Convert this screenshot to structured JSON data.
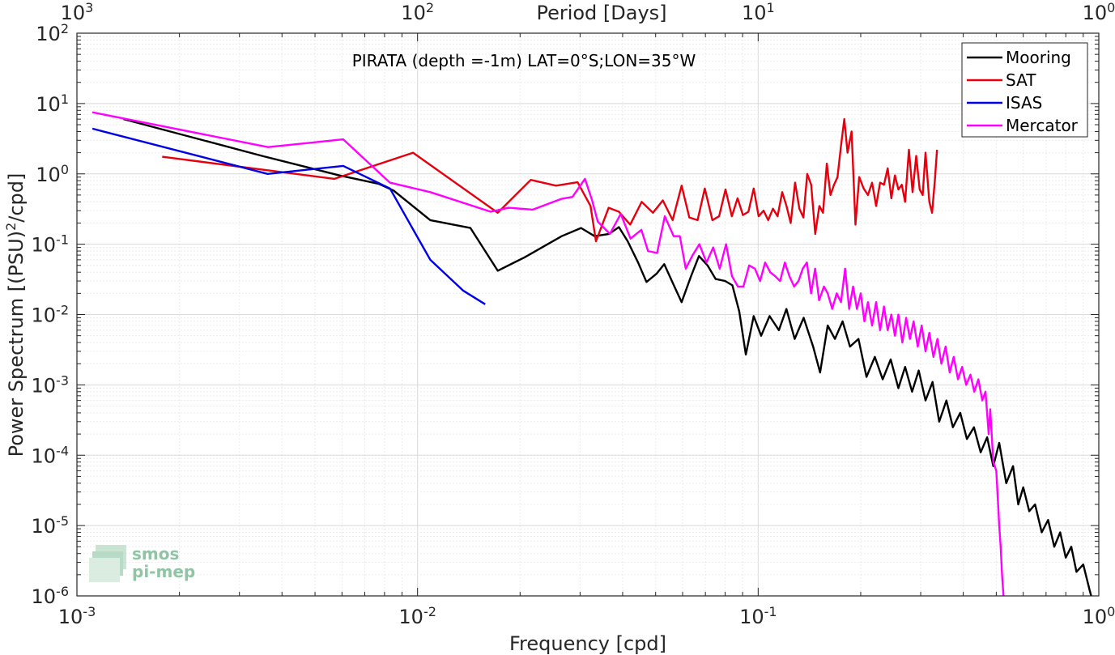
{
  "chart_data": {
    "type": "line",
    "title": "PIRATA (depth =-1m) LAT=0°S;LON=35°W",
    "xlabel": "Frequency [cpd]",
    "ylabel_main": "Power Spectrum [(PSU)",
    "ylabel_sup": "2",
    "ylabel_tail": "/cpd]",
    "top_axis_label": "Period [Days]",
    "xscale": "log",
    "yscale": "log",
    "xlim": [
      0.001,
      1
    ],
    "ylim": [
      1e-06,
      100
    ],
    "grid": true,
    "legend_position": "top-right",
    "x_ticks": [
      {
        "base": "10",
        "exp": "-3",
        "value": 0.001
      },
      {
        "base": "10",
        "exp": "-2",
        "value": 0.01
      },
      {
        "base": "10",
        "exp": "-1",
        "value": 0.1
      },
      {
        "base": "10",
        "exp": "0",
        "value": 1
      }
    ],
    "top_ticks": [
      {
        "base": "10",
        "exp": "3",
        "at": 0.001
      },
      {
        "base": "10",
        "exp": "2",
        "at": 0.01
      },
      {
        "base": "10",
        "exp": "1",
        "at": 0.1
      },
      {
        "base": "10",
        "exp": "0",
        "at": 1
      }
    ],
    "y_ticks": [
      {
        "base": "10",
        "exp": "2",
        "value": 100
      },
      {
        "base": "10",
        "exp": "1",
        "value": 10
      },
      {
        "base": "10",
        "exp": "0",
        "value": 1
      },
      {
        "base": "10",
        "exp": "-1",
        "value": 0.1
      },
      {
        "base": "10",
        "exp": "-2",
        "value": 0.01
      },
      {
        "base": "10",
        "exp": "-3",
        "value": 0.001
      },
      {
        "base": "10",
        "exp": "-4",
        "value": 0.0001
      },
      {
        "base": "10",
        "exp": "-5",
        "value": 1e-05
      },
      {
        "base": "10",
        "exp": "-6",
        "value": 1e-06
      }
    ],
    "series": [
      {
        "name": "Mooring",
        "color": "#000000",
        "points": [
          [
            0.00137,
            6.0
          ],
          [
            0.0035,
            1.8
          ],
          [
            0.0059,
            0.95
          ],
          [
            0.0077,
            0.72
          ],
          [
            0.0085,
            0.58
          ],
          [
            0.0109,
            0.22
          ],
          [
            0.0143,
            0.17
          ],
          [
            0.0172,
            0.042
          ],
          [
            0.0206,
            0.065
          ],
          [
            0.0265,
            0.13
          ],
          [
            0.0302,
            0.17
          ],
          [
            0.0331,
            0.13
          ],
          [
            0.0365,
            0.14
          ],
          [
            0.039,
            0.175
          ],
          [
            0.0414,
            0.11
          ],
          [
            0.0444,
            0.055
          ],
          [
            0.047,
            0.029
          ],
          [
            0.0503,
            0.038
          ],
          [
            0.053,
            0.052
          ],
          [
            0.057,
            0.024
          ],
          [
            0.0596,
            0.015
          ],
          [
            0.0635,
            0.035
          ],
          [
            0.067,
            0.068
          ],
          [
            0.071,
            0.05
          ],
          [
            0.075,
            0.032
          ],
          [
            0.08,
            0.03
          ],
          [
            0.084,
            0.026
          ],
          [
            0.088,
            0.011
          ],
          [
            0.092,
            0.0027
          ],
          [
            0.097,
            0.0095
          ],
          [
            0.102,
            0.005
          ],
          [
            0.108,
            0.0095
          ],
          [
            0.115,
            0.006
          ],
          [
            0.121,
            0.012
          ],
          [
            0.128,
            0.0045
          ],
          [
            0.136,
            0.009
          ],
          [
            0.145,
            0.0035
          ],
          [
            0.152,
            0.0015
          ],
          [
            0.16,
            0.007
          ],
          [
            0.168,
            0.0045
          ],
          [
            0.177,
            0.008
          ],
          [
            0.186,
            0.0035
          ],
          [
            0.197,
            0.0045
          ],
          [
            0.208,
            0.0013
          ],
          [
            0.22,
            0.0025
          ],
          [
            0.232,
            0.0012
          ],
          [
            0.245,
            0.0023
          ],
          [
            0.258,
            0.0009
          ],
          [
            0.27,
            0.0018
          ],
          [
            0.283,
            0.0008
          ],
          [
            0.296,
            0.0016
          ],
          [
            0.31,
            0.0006
          ],
          [
            0.325,
            0.0011
          ],
          [
            0.34,
            0.0003
          ],
          [
            0.357,
            0.0006
          ],
          [
            0.373,
            0.00025
          ],
          [
            0.392,
            0.0004
          ],
          [
            0.41,
            0.00017
          ],
          [
            0.43,
            0.00025
          ],
          [
            0.45,
            0.00011
          ],
          [
            0.47,
            0.00018
          ],
          [
            0.49,
            7e-05
          ],
          [
            0.51,
            0.00015
          ],
          [
            0.535,
            4e-05
          ],
          [
            0.56,
            7e-05
          ],
          [
            0.58,
            2e-05
          ],
          [
            0.6,
            3.5e-05
          ],
          [
            0.625,
            1.6e-05
          ],
          [
            0.65,
            2e-05
          ],
          [
            0.68,
            8e-06
          ],
          [
            0.71,
            1.2e-05
          ],
          [
            0.74,
            5e-06
          ],
          [
            0.77,
            8e-06
          ],
          [
            0.8,
            3.5e-06
          ],
          [
            0.83,
            5e-06
          ],
          [
            0.86,
            2.2e-06
          ],
          [
            0.9,
            2.8e-06
          ],
          [
            0.94,
            1.2e-06
          ],
          [
            0.95,
            1e-06
          ]
        ]
      },
      {
        "name": "SAT",
        "color": "#e6000e",
        "points": [
          [
            0.00178,
            1.75
          ],
          [
            0.0057,
            0.85
          ],
          [
            0.0097,
            2.0
          ],
          [
            0.0172,
            0.28
          ],
          [
            0.0215,
            0.82
          ],
          [
            0.0255,
            0.68
          ],
          [
            0.0295,
            0.76
          ],
          [
            0.0322,
            0.35
          ],
          [
            0.0334,
            0.11
          ],
          [
            0.0364,
            0.33
          ],
          [
            0.039,
            0.29
          ],
          [
            0.0421,
            0.19
          ],
          [
            0.0455,
            0.4
          ],
          [
            0.0491,
            0.28
          ],
          [
            0.0525,
            0.42
          ],
          [
            0.0561,
            0.22
          ],
          [
            0.0596,
            0.68
          ],
          [
            0.0628,
            0.24
          ],
          [
            0.0664,
            0.22
          ],
          [
            0.0697,
            0.62
          ],
          [
            0.0734,
            0.22
          ],
          [
            0.0768,
            0.25
          ],
          [
            0.0802,
            0.6
          ],
          [
            0.0837,
            0.25
          ],
          [
            0.087,
            0.45
          ],
          [
            0.0902,
            0.26
          ],
          [
            0.0936,
            0.29
          ],
          [
            0.097,
            0.62
          ],
          [
            0.1003,
            0.25
          ],
          [
            0.1037,
            0.3
          ],
          [
            0.107,
            0.22
          ],
          [
            0.1105,
            0.32
          ],
          [
            0.114,
            0.25
          ],
          [
            0.1176,
            0.55
          ],
          [
            0.1211,
            0.35
          ],
          [
            0.1246,
            0.2
          ],
          [
            0.1283,
            0.75
          ],
          [
            0.1321,
            0.32
          ],
          [
            0.1358,
            0.24
          ],
          [
            0.1393,
            1.0
          ],
          [
            0.1431,
            0.7
          ],
          [
            0.1471,
            0.14
          ],
          [
            0.1512,
            0.35
          ],
          [
            0.155,
            0.28
          ],
          [
            0.159,
            1.4
          ],
          [
            0.163,
            0.5
          ],
          [
            0.167,
            0.7
          ],
          [
            0.171,
            0.9
          ],
          [
            0.175,
            2.5
          ],
          [
            0.179,
            6.0
          ],
          [
            0.183,
            2.0
          ],
          [
            0.188,
            4.0
          ],
          [
            0.193,
            0.19
          ],
          [
            0.198,
            0.9
          ],
          [
            0.204,
            0.62
          ],
          [
            0.21,
            0.5
          ],
          [
            0.216,
            0.75
          ],
          [
            0.222,
            0.35
          ],
          [
            0.228,
            0.75
          ],
          [
            0.234,
            0.7
          ],
          [
            0.24,
            1.2
          ],
          [
            0.246,
            0.45
          ],
          [
            0.252,
            0.95
          ],
          [
            0.258,
            0.6
          ],
          [
            0.264,
            0.7
          ],
          [
            0.27,
            0.4
          ],
          [
            0.277,
            2.2
          ],
          [
            0.284,
            0.55
          ],
          [
            0.291,
            1.8
          ],
          [
            0.298,
            0.6
          ],
          [
            0.304,
            0.5
          ],
          [
            0.31,
            2.0
          ],
          [
            0.318,
            0.4
          ],
          [
            0.324,
            0.28
          ],
          [
            0.33,
            0.8
          ],
          [
            0.335,
            2.2
          ]
        ]
      },
      {
        "name": "ISAS",
        "color": "#0000e6",
        "points": [
          [
            0.00111,
            4.4
          ],
          [
            0.00363,
            1.0
          ],
          [
            0.00605,
            1.3
          ],
          [
            0.0083,
            0.62
          ],
          [
            0.0109,
            0.06
          ],
          [
            0.0136,
            0.022
          ],
          [
            0.0158,
            0.014
          ]
        ]
      },
      {
        "name": "Mercator",
        "color": "#ff00ff",
        "points": [
          [
            0.00111,
            7.5
          ],
          [
            0.00364,
            2.4
          ],
          [
            0.00605,
            3.1
          ],
          [
            0.0083,
            0.75
          ],
          [
            0.0109,
            0.55
          ],
          [
            0.0164,
            0.29
          ],
          [
            0.0185,
            0.33
          ],
          [
            0.0218,
            0.31
          ],
          [
            0.0264,
            0.44
          ],
          [
            0.0285,
            0.47
          ],
          [
            0.031,
            0.85
          ],
          [
            0.0325,
            0.43
          ],
          [
            0.0338,
            0.21
          ],
          [
            0.0367,
            0.14
          ],
          [
            0.0395,
            0.27
          ],
          [
            0.0422,
            0.12
          ],
          [
            0.0454,
            0.16
          ],
          [
            0.0475,
            0.08
          ],
          [
            0.0505,
            0.075
          ],
          [
            0.0532,
            0.25
          ],
          [
            0.0565,
            0.13
          ],
          [
            0.0589,
            0.13
          ],
          [
            0.0613,
            0.045
          ],
          [
            0.0642,
            0.07
          ],
          [
            0.0672,
            0.1
          ],
          [
            0.0705,
            0.055
          ],
          [
            0.0738,
            0.09
          ],
          [
            0.0771,
            0.045
          ],
          [
            0.0805,
            0.1
          ],
          [
            0.0838,
            0.035
          ],
          [
            0.0872,
            0.025
          ],
          [
            0.0905,
            0.025
          ],
          [
            0.0941,
            0.05
          ],
          [
            0.0978,
            0.045
          ],
          [
            0.1013,
            0.03
          ],
          [
            0.1048,
            0.055
          ],
          [
            0.1085,
            0.04
          ],
          [
            0.1122,
            0.035
          ],
          [
            0.116,
            0.03
          ],
          [
            0.1198,
            0.055
          ],
          [
            0.1236,
            0.035
          ],
          [
            0.1275,
            0.025
          ],
          [
            0.1313,
            0.03
          ],
          [
            0.1352,
            0.045
          ],
          [
            0.139,
            0.055
          ],
          [
            0.143,
            0.02
          ],
          [
            0.147,
            0.045
          ],
          [
            0.151,
            0.016
          ],
          [
            0.156,
            0.025
          ],
          [
            0.16,
            0.02
          ],
          [
            0.165,
            0.012
          ],
          [
            0.17,
            0.02
          ],
          [
            0.175,
            0.015
          ],
          [
            0.18,
            0.045
          ],
          [
            0.185,
            0.012
          ],
          [
            0.19,
            0.025
          ],
          [
            0.195,
            0.012
          ],
          [
            0.2,
            0.02
          ],
          [
            0.205,
            0.008
          ],
          [
            0.21,
            0.015
          ],
          [
            0.216,
            0.007
          ],
          [
            0.222,
            0.015
          ],
          [
            0.228,
            0.006
          ],
          [
            0.234,
            0.013
          ],
          [
            0.24,
            0.006
          ],
          [
            0.246,
            0.01
          ],
          [
            0.252,
            0.005
          ],
          [
            0.258,
            0.01
          ],
          [
            0.265,
            0.004
          ],
          [
            0.272,
            0.009
          ],
          [
            0.279,
            0.0045
          ],
          [
            0.286,
            0.008
          ],
          [
            0.294,
            0.0035
          ],
          [
            0.302,
            0.007
          ],
          [
            0.31,
            0.003
          ],
          [
            0.318,
            0.0055
          ],
          [
            0.327,
            0.0025
          ],
          [
            0.336,
            0.0045
          ],
          [
            0.345,
            0.002
          ],
          [
            0.355,
            0.0035
          ],
          [
            0.365,
            0.0015
          ],
          [
            0.375,
            0.0025
          ],
          [
            0.386,
            0.0012
          ],
          [
            0.397,
            0.0018
          ],
          [
            0.408,
            0.001
          ],
          [
            0.42,
            0.0014
          ],
          [
            0.431,
            0.0008
          ],
          [
            0.443,
            0.0012
          ],
          [
            0.455,
            0.0006
          ],
          [
            0.465,
            0.0008
          ],
          [
            0.475,
            0.0002
          ],
          [
            0.48,
            0.00045
          ],
          [
            0.49,
            8e-05
          ],
          [
            0.5,
            6e-05
          ],
          [
            0.505,
            2.5e-05
          ],
          [
            0.51,
            1e-05
          ],
          [
            0.515,
            5e-06
          ],
          [
            0.52,
            2e-06
          ],
          [
            0.525,
            1e-06
          ]
        ]
      }
    ]
  },
  "logo": {
    "line1": "smos",
    "line2": "pi-mep",
    "color": "#8fc5a4"
  }
}
